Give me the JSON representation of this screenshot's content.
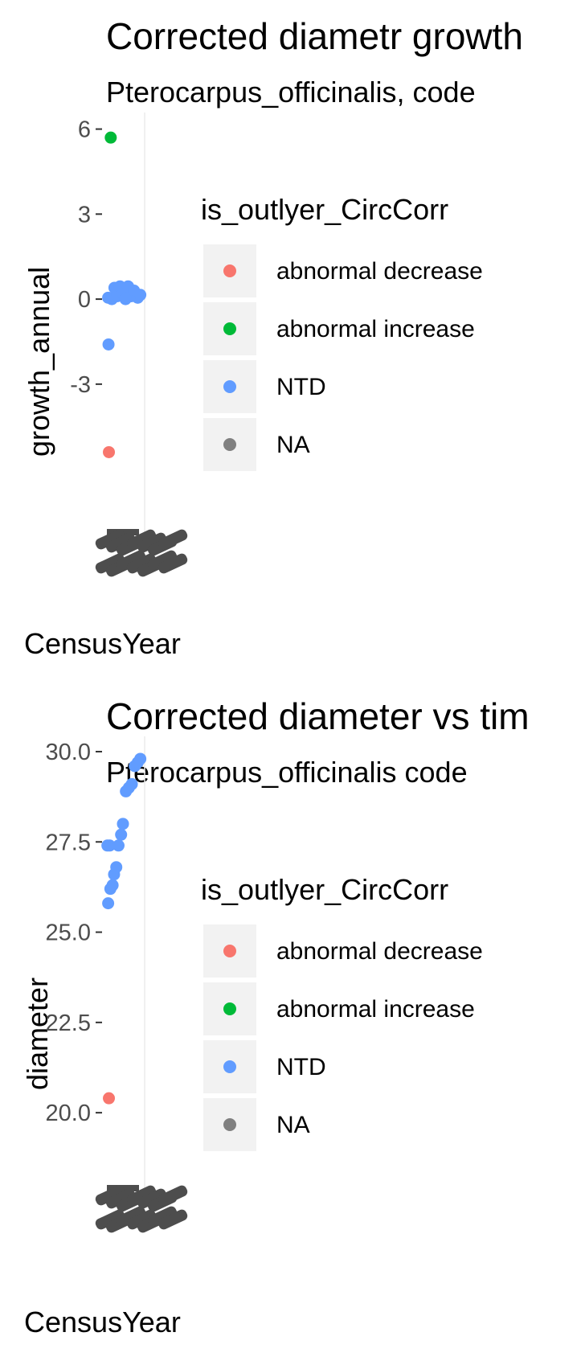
{
  "chart_data": [
    {
      "type": "scatter",
      "title": "Corrected diametr growth",
      "subtitle": "Pterocarpus_officinalis, code",
      "xlabel": "CensusYear",
      "ylabel": "growth_annual",
      "yticks": [
        6,
        3,
        0,
        -3
      ],
      "ytick_labels": [
        "6",
        "3",
        "0",
        "-3"
      ],
      "ylim": [
        -7.6,
        6.3
      ],
      "legend": {
        "title": "is_outlyer_CircCorr",
        "placement": "right",
        "entries": [
          {
            "label": "abnormal decrease",
            "color": "#F8766D"
          },
          {
            "label": "abnormal increase",
            "color": "#00BA38"
          },
          {
            "label": "NTD",
            "color": "#619CFF"
          },
          {
            "label": "NA",
            "color": "#808080"
          }
        ]
      },
      "series": [
        {
          "category": "abnormal decrease",
          "color": "#F8766D",
          "points": [
            {
              "x": 0.12,
              "y": -5.4
            }
          ]
        },
        {
          "category": "abnormal increase",
          "color": "#00BA38",
          "points": [
            {
              "x": 0.17,
              "y": 5.7
            }
          ]
        },
        {
          "category": "NTD",
          "color": "#619CFF",
          "points": [
            {
              "x": 0.1,
              "y": 0.05
            },
            {
              "x": 0.2,
              "y": 0.0
            },
            {
              "x": 0.27,
              "y": 0.4
            },
            {
              "x": 0.34,
              "y": 0.1
            },
            {
              "x": 0.42,
              "y": 0.45
            },
            {
              "x": 0.5,
              "y": 0.2
            },
            {
              "x": 0.57,
              "y": 0.0
            },
            {
              "x": 0.64,
              "y": 0.45
            },
            {
              "x": 0.72,
              "y": 0.1
            },
            {
              "x": 0.8,
              "y": 0.3
            },
            {
              "x": 0.9,
              "y": 0.05
            },
            {
              "x": 0.97,
              "y": 0.15
            },
            {
              "x": 0.11,
              "y": -1.6
            }
          ]
        }
      ],
      "grid": true
    },
    {
      "type": "scatter",
      "title": "Corrected diameter vs tim",
      "subtitle": "Pterocarpus_officinalis code",
      "xlabel": "CensusYear",
      "ylabel": "diameter",
      "yticks": [
        30.0,
        27.5,
        25.0,
        22.5,
        20.0
      ],
      "ytick_labels": [
        "30.0",
        "27.5",
        "25.0",
        "22.5",
        "20.0"
      ],
      "ylim": [
        18.4,
        30.2
      ],
      "legend": {
        "title": "is_outlyer_CircCorr",
        "placement": "right",
        "entries": [
          {
            "label": "abnormal decrease",
            "color": "#F8766D"
          },
          {
            "label": "abnormal increase",
            "color": "#00BA38"
          },
          {
            "label": "NTD",
            "color": "#619CFF"
          },
          {
            "label": "NA",
            "color": "#808080"
          }
        ]
      },
      "series": [
        {
          "category": "abnormal decrease",
          "color": "#F8766D",
          "points": [
            {
              "x": 0.12,
              "y": 20.4
            }
          ]
        },
        {
          "category": "NTD",
          "color": "#619CFF",
          "points": [
            {
              "x": 0.08,
              "y": 27.4
            },
            {
              "x": 0.14,
              "y": 27.4
            },
            {
              "x": 0.1,
              "y": 25.8
            },
            {
              "x": 0.16,
              "y": 26.2
            },
            {
              "x": 0.22,
              "y": 26.3
            },
            {
              "x": 0.26,
              "y": 26.6
            },
            {
              "x": 0.32,
              "y": 26.8
            },
            {
              "x": 0.38,
              "y": 27.4
            },
            {
              "x": 0.45,
              "y": 27.7
            },
            {
              "x": 0.5,
              "y": 28.0
            },
            {
              "x": 0.58,
              "y": 28.9
            },
            {
              "x": 0.66,
              "y": 29.0
            },
            {
              "x": 0.74,
              "y": 29.1
            },
            {
              "x": 0.82,
              "y": 29.6
            },
            {
              "x": 0.9,
              "y": 29.7
            },
            {
              "x": 0.97,
              "y": 29.8
            }
          ]
        }
      ],
      "grid": true
    }
  ]
}
